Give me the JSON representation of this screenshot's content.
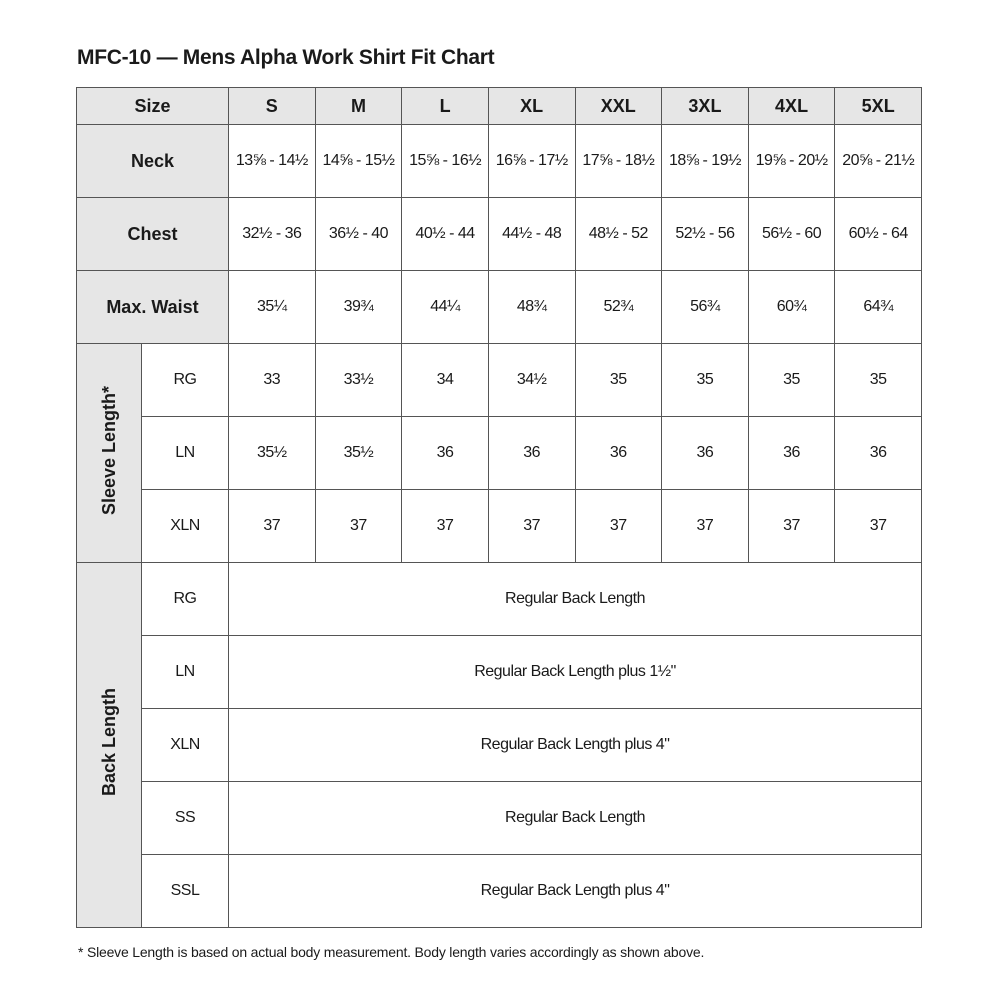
{
  "title": "MFC-10 — Mens Alpha Work Shirt Fit Chart",
  "header": {
    "label": "Size",
    "sizes": [
      "S",
      "M",
      "L",
      "XL",
      "XXL",
      "3XL",
      "4XL",
      "5XL"
    ]
  },
  "rows": [
    {
      "label": "Neck",
      "values": [
        "13⅝ - 14½",
        "14⅝ - 15½",
        "15⅝ - 16½",
        "16⅝ - 17½",
        "17⅝ - 18½",
        "18⅝ - 19½",
        "19⅝ - 20½",
        "20⅝ - 21½"
      ]
    },
    {
      "label": "Chest",
      "values": [
        "32½ - 36",
        "36½ - 40",
        "40½ - 44",
        "44½ - 48",
        "48½ - 52",
        "52½ - 56",
        "56½ - 60",
        "60½ - 64"
      ]
    },
    {
      "label": "Max. Waist",
      "values": [
        "35¼",
        "39¾",
        "44¼",
        "48¾",
        "52¾",
        "56¾",
        "60¾",
        "64¾"
      ]
    }
  ],
  "sleeve": {
    "label": "Sleeve Length*",
    "rows": [
      {
        "label": "RG",
        "values": [
          "33",
          "33½",
          "34",
          "34½",
          "35",
          "35",
          "35",
          "35"
        ]
      },
      {
        "label": "LN",
        "values": [
          "35½",
          "35½",
          "36",
          "36",
          "36",
          "36",
          "36",
          "36"
        ]
      },
      {
        "label": "XLN",
        "values": [
          "37",
          "37",
          "37",
          "37",
          "37",
          "37",
          "37",
          "37"
        ]
      }
    ]
  },
  "back": {
    "label": "Back Length",
    "rows": [
      {
        "label": "RG",
        "value": "Regular Back Length"
      },
      {
        "label": "LN",
        "value": "Regular Back Length plus 1½\""
      },
      {
        "label": "XLN",
        "value": "Regular Back Length plus 4\""
      },
      {
        "label": "SS",
        "value": "Regular Back Length"
      },
      {
        "label": "SSL",
        "value": "Regular Back Length plus 4\""
      }
    ]
  },
  "footnote": "* Sleeve Length is based on actual body measurement. Body length varies accordingly as shown above.",
  "colors": {
    "header_bg": "#e6e6e6",
    "border": "#555555"
  }
}
